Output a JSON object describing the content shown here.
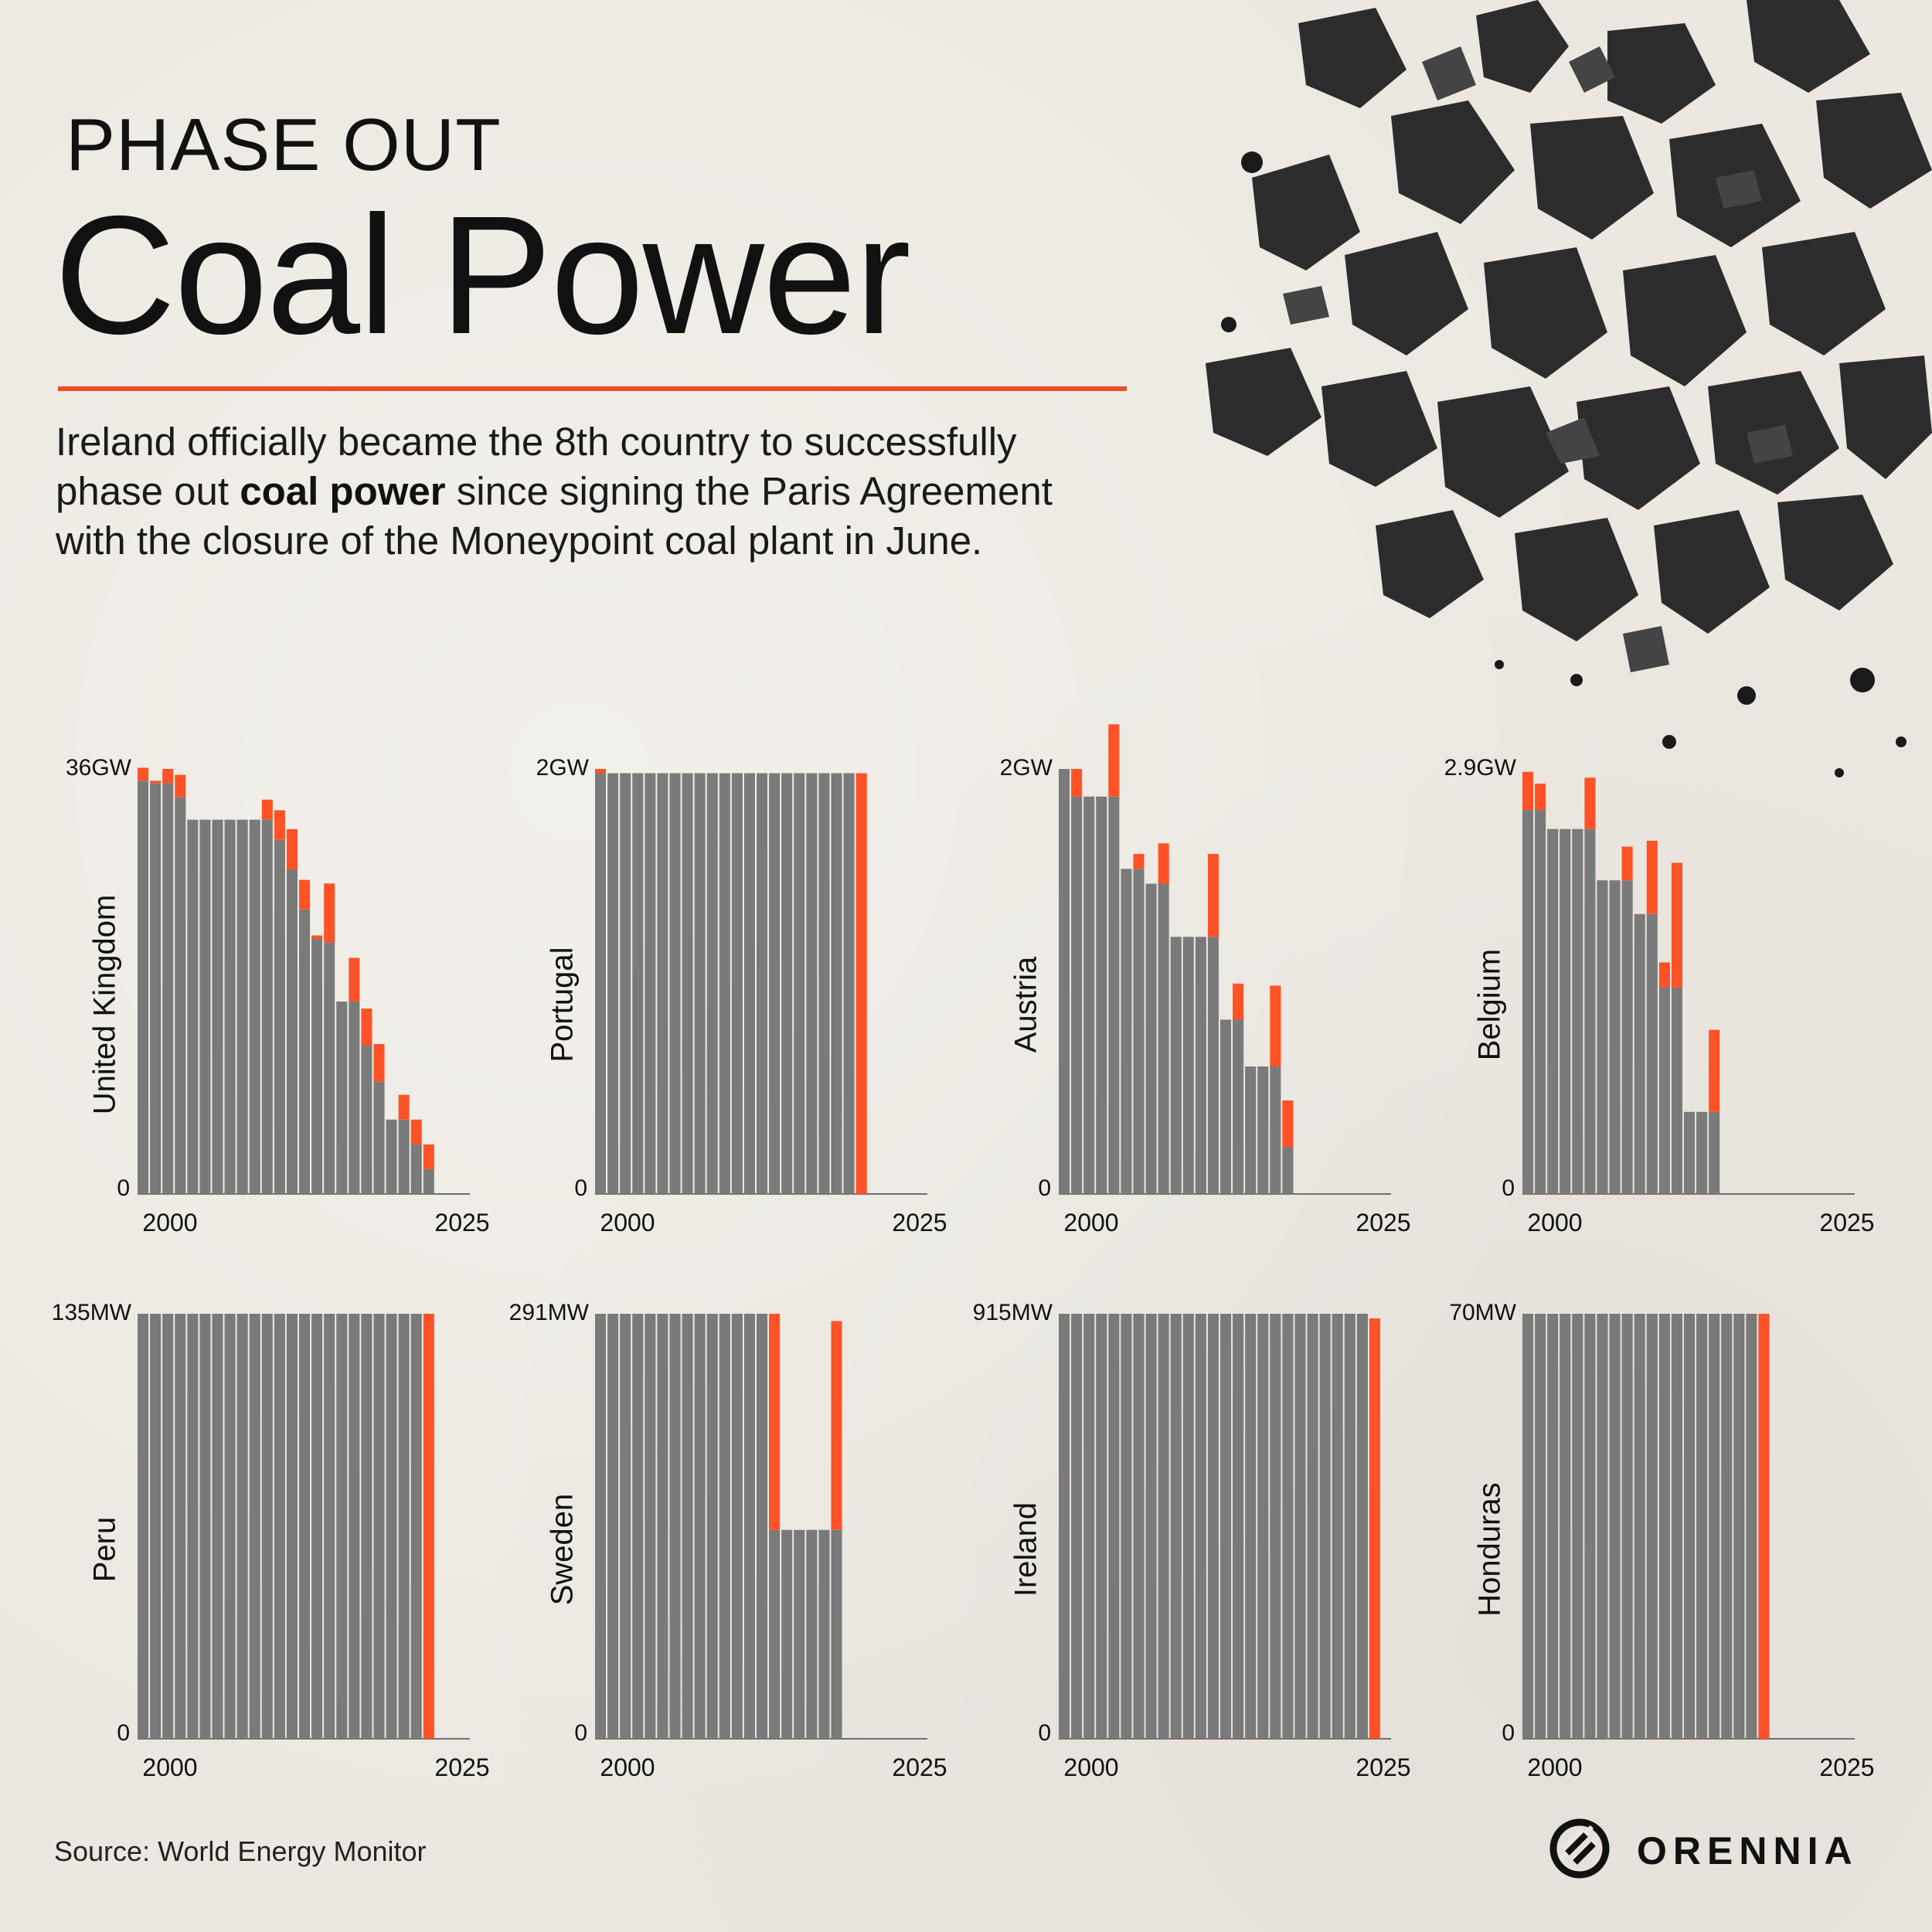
{
  "header": {
    "kicker": "PHASE OUT",
    "title": "Coal Power",
    "intro_before": "Ireland officially became the 8th country to successfully phase out ",
    "intro_bold": "coal power",
    "intro_after": " since signing the Paris Agreement with the closure of the Moneypoint coal plant in June."
  },
  "footer": {
    "source": "Source: World Energy Monitor",
    "brand": "ORENNIA"
  },
  "colors": {
    "bar": "#7a7a7a",
    "retired": "#ff5227",
    "accent": "#ee4a24",
    "axis": "#6f6f6f",
    "text": "#111111"
  },
  "chart_data": [
    {
      "type": "bar",
      "country": "United Kingdom",
      "ymax_label": "36GW",
      "ymin_label": "0",
      "x_tick_labels": [
        "2000",
        "2025"
      ],
      "ylim": [
        0,
        36
      ],
      "xlim": [
        2000,
        2025
      ],
      "years": [
        2000,
        2001,
        2002,
        2003,
        2004,
        2005,
        2006,
        2007,
        2008,
        2009,
        2010,
        2011,
        2012,
        2013,
        2014,
        2015,
        2016,
        2017,
        2018,
        2019,
        2020,
        2021,
        2022,
        2023,
        2024
      ],
      "operating_gw": [
        35.0,
        34.8,
        34.8,
        33.6,
        31.7,
        31.7,
        31.7,
        31.7,
        31.7,
        31.7,
        31.7,
        30.0,
        27.5,
        24.1,
        21.6,
        21.3,
        16.3,
        16.3,
        12.6,
        9.5,
        6.3,
        6.3,
        4.2,
        2.1,
        0
      ],
      "retired_gw": [
        1.1,
        0.2,
        1.2,
        1.9,
        0,
        0,
        0,
        0,
        0,
        0,
        1.7,
        2.5,
        3.4,
        2.5,
        0.3,
        5.0,
        0,
        3.7,
        3.1,
        3.2,
        0,
        2.1,
        2.1,
        2.1,
        0
      ]
    },
    {
      "type": "bar",
      "country": "Portugal",
      "ymax_label": "2GW",
      "ymin_label": "0",
      "x_tick_labels": [
        "2000",
        "2025"
      ],
      "ylim": [
        0,
        2
      ],
      "xlim": [
        2000,
        2025
      ],
      "years": [
        2000,
        2001,
        2002,
        2003,
        2004,
        2005,
        2006,
        2007,
        2008,
        2009,
        2010,
        2011,
        2012,
        2013,
        2014,
        2015,
        2016,
        2017,
        2018,
        2019,
        2020,
        2021,
        2022,
        2023,
        2024
      ],
      "operating_gw": [
        1.98,
        1.98,
        1.98,
        1.98,
        1.98,
        1.98,
        1.98,
        1.98,
        1.98,
        1.98,
        1.98,
        1.98,
        1.98,
        1.98,
        1.98,
        1.98,
        1.98,
        1.98,
        1.98,
        1.98,
        1.98,
        0,
        0,
        0,
        0
      ],
      "retired_gw": [
        0.02,
        0,
        0,
        0,
        0,
        0,
        0,
        0,
        0,
        0,
        0,
        0,
        0,
        0,
        0,
        0,
        0,
        0,
        0,
        0,
        0,
        1.98,
        0,
        0,
        0
      ]
    },
    {
      "type": "bar",
      "country": "Austria",
      "ymax_label": "2GW",
      "ymin_label": "0",
      "x_tick_labels": [
        "2000",
        "2025"
      ],
      "ylim": [
        0,
        2
      ],
      "xlim": [
        2000,
        2025
      ],
      "years": [
        2000,
        2001,
        2002,
        2003,
        2004,
        2005,
        2006,
        2007,
        2008,
        2009,
        2010,
        2011,
        2012,
        2013,
        2014,
        2015,
        2016,
        2017,
        2018,
        2019,
        2020,
        2021,
        2022,
        2023,
        2024
      ],
      "operating_gw": [
        2.0,
        1.87,
        1.87,
        1.87,
        1.87,
        1.53,
        1.53,
        1.46,
        1.46,
        1.21,
        1.21,
        1.21,
        1.21,
        0.82,
        0.82,
        0.6,
        0.6,
        0.6,
        0.22,
        0,
        0,
        0,
        0,
        0,
        0
      ],
      "retired_gw": [
        0,
        0.13,
        0,
        0,
        0.34,
        0,
        0.07,
        0,
        0.19,
        0,
        0,
        0,
        0.39,
        0,
        0.17,
        0,
        0,
        0.38,
        0.22,
        0,
        0,
        0,
        0,
        0,
        0
      ]
    },
    {
      "type": "bar",
      "country": "Belgium",
      "ymax_label": "2.9GW",
      "ymin_label": "0",
      "x_tick_labels": [
        "2000",
        "2025"
      ],
      "ylim": [
        0,
        2.9
      ],
      "xlim": [
        2000,
        2025
      ],
      "years": [
        2000,
        2001,
        2002,
        2003,
        2004,
        2005,
        2006,
        2007,
        2008,
        2009,
        2010,
        2011,
        2012,
        2013,
        2014,
        2015,
        2016,
        2017,
        2018,
        2019,
        2020,
        2021,
        2022,
        2023,
        2024
      ],
      "operating_gw": [
        2.62,
        2.62,
        2.49,
        2.49,
        2.49,
        2.49,
        2.14,
        2.14,
        2.14,
        1.91,
        1.91,
        1.41,
        1.41,
        0.56,
        0.56,
        0.56,
        0,
        0,
        0,
        0,
        0,
        0,
        0,
        0,
        0
      ],
      "retired_gw": [
        0.26,
        0.18,
        0,
        0,
        0,
        0.35,
        0,
        0,
        0.23,
        0,
        0.5,
        0.17,
        0.85,
        0,
        0,
        0.56,
        0,
        0,
        0,
        0,
        0,
        0,
        0,
        0,
        0
      ]
    },
    {
      "type": "bar",
      "country": "Peru",
      "ymax_label": "135MW",
      "ymin_label": "0",
      "x_tick_labels": [
        "2000",
        "2025"
      ],
      "ylim": [
        0,
        135
      ],
      "xlim": [
        2000,
        2025
      ],
      "years": [
        2000,
        2001,
        2002,
        2003,
        2004,
        2005,
        2006,
        2007,
        2008,
        2009,
        2010,
        2011,
        2012,
        2013,
        2014,
        2015,
        2016,
        2017,
        2018,
        2019,
        2020,
        2021,
        2022,
        2023,
        2024
      ],
      "operating_mw": [
        135,
        135,
        135,
        135,
        135,
        135,
        135,
        135,
        135,
        135,
        135,
        135,
        135,
        135,
        135,
        135,
        135,
        135,
        135,
        135,
        135,
        135,
        135,
        0,
        0
      ],
      "retired_mw": [
        0,
        0,
        0,
        0,
        0,
        0,
        0,
        0,
        0,
        0,
        0,
        0,
        0,
        0,
        0,
        0,
        0,
        0,
        0,
        0,
        0,
        0,
        0,
        135,
        0
      ]
    },
    {
      "type": "bar",
      "country": "Sweden",
      "ymax_label": "291MW",
      "ymin_label": "0",
      "x_tick_labels": [
        "2000",
        "2025"
      ],
      "ylim": [
        0,
        291
      ],
      "xlim": [
        2000,
        2025
      ],
      "years": [
        2000,
        2001,
        2002,
        2003,
        2004,
        2005,
        2006,
        2007,
        2008,
        2009,
        2010,
        2011,
        2012,
        2013,
        2014,
        2015,
        2016,
        2017,
        2018,
        2019,
        2020,
        2021,
        2022,
        2023,
        2024
      ],
      "operating_mw": [
        291,
        291,
        291,
        291,
        291,
        291,
        291,
        291,
        291,
        291,
        291,
        291,
        291,
        291,
        143,
        143,
        143,
        143,
        143,
        143,
        0,
        0,
        0,
        0,
        0
      ],
      "retired_mw": [
        0,
        0,
        0,
        0,
        0,
        0,
        0,
        0,
        0,
        0,
        0,
        0,
        0,
        0,
        148,
        0,
        0,
        0,
        0,
        143,
        0,
        0,
        0,
        0,
        0
      ]
    },
    {
      "type": "bar",
      "country": "Ireland",
      "ymax_label": "915MW",
      "ymin_label": "0",
      "x_tick_labels": [
        "2000",
        "2025"
      ],
      "ylim": [
        0,
        915
      ],
      "xlim": [
        2000,
        2025
      ],
      "years": [
        2000,
        2001,
        2002,
        2003,
        2004,
        2005,
        2006,
        2007,
        2008,
        2009,
        2010,
        2011,
        2012,
        2013,
        2014,
        2015,
        2016,
        2017,
        2018,
        2019,
        2020,
        2021,
        2022,
        2023,
        2024,
        2025
      ],
      "operating_mw": [
        915,
        915,
        915,
        915,
        915,
        915,
        915,
        915,
        915,
        915,
        915,
        915,
        915,
        915,
        915,
        915,
        915,
        915,
        915,
        915,
        915,
        915,
        915,
        915,
        915,
        0
      ],
      "retired_mw": [
        0,
        0,
        0,
        0,
        0,
        0,
        0,
        0,
        0,
        0,
        0,
        0,
        0,
        0,
        0,
        0,
        0,
        0,
        0,
        0,
        0,
        0,
        0,
        0,
        0,
        905
      ]
    },
    {
      "type": "bar",
      "country": "Honduras",
      "ymax_label": "70MW",
      "ymin_label": "0",
      "x_tick_labels": [
        "2000",
        "2025"
      ],
      "ylim": [
        0,
        70
      ],
      "xlim": [
        2000,
        2025
      ],
      "years": [
        2000,
        2001,
        2002,
        2003,
        2004,
        2005,
        2006,
        2007,
        2008,
        2009,
        2010,
        2011,
        2012,
        2013,
        2014,
        2015,
        2016,
        2017,
        2018,
        2019,
        2020,
        2021,
        2022,
        2023,
        2024
      ],
      "operating_mw": [
        70,
        70,
        70,
        70,
        70,
        70,
        70,
        70,
        70,
        70,
        70,
        70,
        70,
        70,
        70,
        70,
        70,
        70,
        70,
        0,
        0,
        0,
        0,
        0,
        0
      ],
      "retired_mw": [
        0,
        0,
        0,
        0,
        0,
        0,
        0,
        0,
        0,
        0,
        0,
        0,
        0,
        0,
        0,
        0,
        0,
        0,
        0,
        70,
        0,
        0,
        0,
        0,
        0
      ]
    }
  ]
}
